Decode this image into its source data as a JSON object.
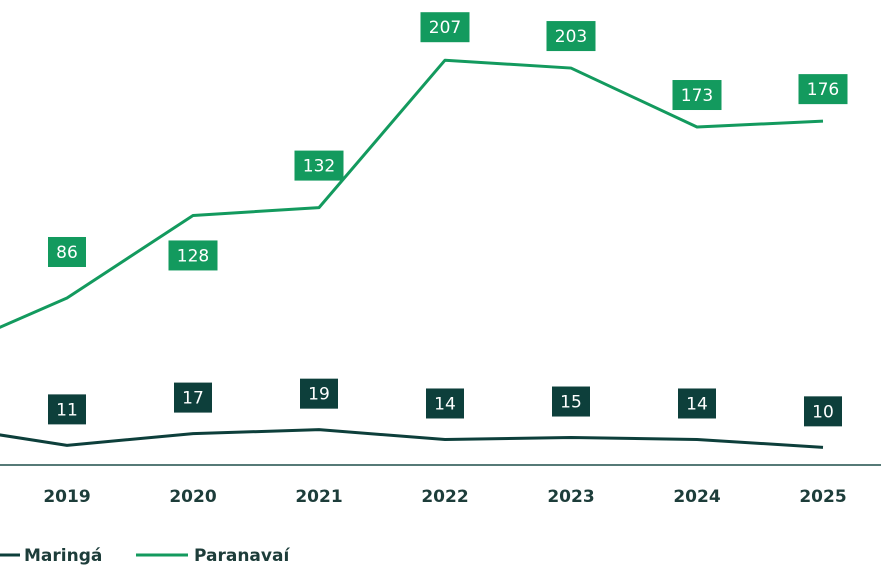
{
  "chart_data": {
    "type": "line",
    "categories": [
      null,
      "2019",
      "2020",
      "2021",
      "2022",
      "2023",
      "2024",
      "2025"
    ],
    "series": [
      {
        "name": "Maringá",
        "color": "#0d3f3b",
        "values": [
          21,
          11,
          17,
          19,
          14,
          15,
          14,
          10
        ]
      },
      {
        "name": "Paranavaí",
        "color": "#139a5e",
        "values": [
          58,
          86,
          128,
          132,
          207,
          203,
          173,
          176
        ]
      }
    ],
    "ylim": [
      0,
      230
    ]
  }
}
